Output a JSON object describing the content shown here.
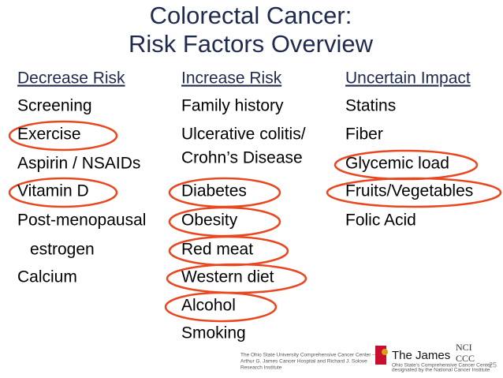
{
  "title": [
    "Colorectal Cancer:",
    "Risk Factors Overview"
  ],
  "columns": [
    {
      "header": "Decrease Risk",
      "items": [
        "Screening",
        "Exercise",
        "Aspirin / NSAIDs",
        "Vitamin D",
        "Post-menopausal",
        "estrogen",
        "Calcium"
      ]
    },
    {
      "header": "Increase Risk",
      "items": [
        "Family history",
        "Ulcerative colitis/",
        "Crohn’s Disease",
        "Diabetes",
        "Obesity",
        "Red meat",
        "Western diet",
        "Alcohol",
        "Smoking"
      ]
    },
    {
      "header": "Uncertain Impact",
      "items": [
        "Statins",
        "Fiber",
        "Glycemic load",
        "Fruits/Vegetables",
        "Folic Acid"
      ]
    }
  ],
  "footer": {
    "institution": [
      "The Ohio State University Comprehensive Cancer Center –",
      "Arthur G. James Cancer Hospital and Richard J. Solove",
      "Research Institute"
    ],
    "logo": "The James",
    "logo_sub": [
      "Ohio State’s Comprehensive Cancer Center",
      "designated by the National Cancer Institute"
    ],
    "nci": [
      "NCI",
      "CCC"
    ],
    "page": "25"
  }
}
